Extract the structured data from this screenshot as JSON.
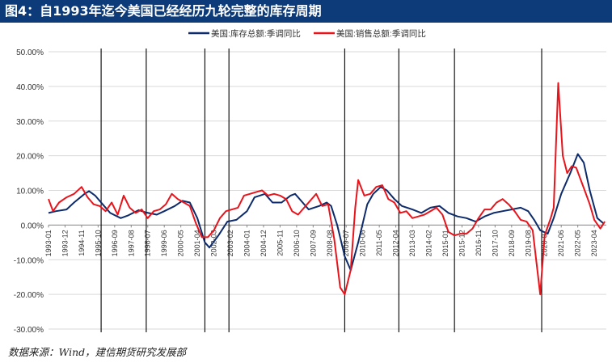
{
  "header": {
    "title": "图4：自1993年迄今美国已经经历九轮完整的库存周期"
  },
  "footer": {
    "source": "数据来源：Wind，建信期货研究发展部"
  },
  "colors": {
    "title_bg": "#0d3b7a",
    "inventory": "#0d2a6b",
    "sales": "#e8141c",
    "divider": "#000000"
  },
  "chart_data": {
    "type": "line",
    "ylim": [
      -30,
      50
    ],
    "y_ticks": [
      -30,
      -20,
      -10,
      0,
      10,
      20,
      30,
      40,
      50
    ],
    "y_tick_labels": [
      "-30.00%",
      "-20.00%",
      "-10.00%",
      "0.00%",
      "10.00%",
      "20.00%",
      "30.00%",
      "40.00%",
      "50.00%"
    ],
    "x_tick_labels": [
      "1993-01",
      "1993-12",
      "1994-11",
      "1995-10",
      "1996-09",
      "1997-08",
      "1998-07",
      "1999-06",
      "2000-05",
      "2001-04",
      "2002-03",
      "2003-02",
      "2004-01",
      "2004-12",
      "2005-11",
      "2006-10",
      "2007-09",
      "2008-08",
      "2009-07",
      "2010-06",
      "2011-05",
      "2012-04",
      "2013-03",
      "2014-02",
      "2015-01",
      "2015-12",
      "2016-11",
      "2017-10",
      "2018-09",
      "2019-08",
      "2020-07",
      "2021-06",
      "2022-05",
      "2023-04"
    ],
    "cycle_dividers": [
      "1995-12",
      "1998-06",
      "2001-09",
      "2003-01",
      "2009-06",
      "2012-06",
      "2015-07",
      "2020-05"
    ],
    "series": [
      {
        "name": "美国:库存总额:季调同比",
        "points": [
          [
            "1993-01",
            3.5
          ],
          [
            "1993-06",
            4.0
          ],
          [
            "1994-01",
            4.5
          ],
          [
            "1994-06",
            6.5
          ],
          [
            "1995-01",
            9.0
          ],
          [
            "1995-04",
            9.8
          ],
          [
            "1995-08",
            8.5
          ],
          [
            "1995-12",
            6.5
          ],
          [
            "1996-06",
            3.5
          ],
          [
            "1997-01",
            2.0
          ],
          [
            "1997-06",
            2.8
          ],
          [
            "1998-01",
            4.3
          ],
          [
            "1998-06",
            3.6
          ],
          [
            "1999-01",
            3.0
          ],
          [
            "1999-06",
            4.0
          ],
          [
            "2000-01",
            5.5
          ],
          [
            "2000-06",
            7.0
          ],
          [
            "2000-11",
            6.5
          ],
          [
            "2001-04",
            2.0
          ],
          [
            "2001-09",
            -5.0
          ],
          [
            "2001-12",
            -6.5
          ],
          [
            "2002-06",
            -3.0
          ],
          [
            "2002-12",
            1.0
          ],
          [
            "2003-06",
            1.5
          ],
          [
            "2004-01",
            4.0
          ],
          [
            "2004-06",
            8.0
          ],
          [
            "2005-01",
            9.0
          ],
          [
            "2005-06",
            6.5
          ],
          [
            "2005-12",
            6.5
          ],
          [
            "2006-06",
            8.5
          ],
          [
            "2006-09",
            9.0
          ],
          [
            "2007-01",
            7.0
          ],
          [
            "2007-06",
            4.5
          ],
          [
            "2008-01",
            5.5
          ],
          [
            "2008-06",
            6.5
          ],
          [
            "2008-09",
            5.5
          ],
          [
            "2009-01",
            0.0
          ],
          [
            "2009-06",
            -9.0
          ],
          [
            "2009-10",
            -13.0
          ],
          [
            "2010-03",
            -5.0
          ],
          [
            "2010-09",
            6.0
          ],
          [
            "2011-01",
            9.0
          ],
          [
            "2011-06",
            11.0
          ],
          [
            "2011-10",
            10.0
          ],
          [
            "2012-03",
            7.5
          ],
          [
            "2012-08",
            5.5
          ],
          [
            "2013-03",
            4.5
          ],
          [
            "2013-09",
            3.5
          ],
          [
            "2014-03",
            5.0
          ],
          [
            "2014-09",
            5.5
          ],
          [
            "2015-03",
            3.5
          ],
          [
            "2015-09",
            2.5
          ],
          [
            "2016-03",
            2.0
          ],
          [
            "2016-09",
            1.0
          ],
          [
            "2017-03",
            2.5
          ],
          [
            "2017-09",
            3.5
          ],
          [
            "2018-03",
            4.0
          ],
          [
            "2018-09",
            4.5
          ],
          [
            "2019-03",
            5.0
          ],
          [
            "2019-08",
            4.0
          ],
          [
            "2019-12",
            1.5
          ],
          [
            "2020-04",
            -1.5
          ],
          [
            "2020-09",
            -2.5
          ],
          [
            "2021-01",
            2.0
          ],
          [
            "2021-06",
            9.0
          ],
          [
            "2021-12",
            15.0
          ],
          [
            "2022-05",
            20.5
          ],
          [
            "2022-09",
            18.0
          ],
          [
            "2023-01",
            10.0
          ],
          [
            "2023-06",
            2.0
          ],
          [
            "2023-10",
            0.5
          ]
        ]
      },
      {
        "name": "美国:销售总额:季调同比",
        "points": [
          [
            "1993-01",
            7.5
          ],
          [
            "1993-04",
            4.0
          ],
          [
            "1993-08",
            6.5
          ],
          [
            "1994-01",
            8.0
          ],
          [
            "1994-06",
            9.0
          ],
          [
            "1994-11",
            11.0
          ],
          [
            "1995-03",
            8.0
          ],
          [
            "1995-07",
            6.0
          ],
          [
            "1995-11",
            5.5
          ],
          [
            "1996-03",
            4.0
          ],
          [
            "1996-07",
            6.5
          ],
          [
            "1996-11",
            3.0
          ],
          [
            "1997-03",
            8.5
          ],
          [
            "1997-07",
            5.0
          ],
          [
            "1997-11",
            3.5
          ],
          [
            "1998-03",
            4.5
          ],
          [
            "1998-07",
            2.0
          ],
          [
            "1998-11",
            4.0
          ],
          [
            "1999-03",
            4.5
          ],
          [
            "1999-07",
            6.0
          ],
          [
            "1999-11",
            9.0
          ],
          [
            "2000-03",
            7.5
          ],
          [
            "2000-07",
            6.5
          ],
          [
            "2000-11",
            5.5
          ],
          [
            "2001-03",
            0.5
          ],
          [
            "2001-07",
            -3.5
          ],
          [
            "2001-11",
            -3.5
          ],
          [
            "2002-03",
            -1.5
          ],
          [
            "2002-07",
            2.0
          ],
          [
            "2002-11",
            4.0
          ],
          [
            "2003-03",
            4.5
          ],
          [
            "2003-07",
            5.0
          ],
          [
            "2003-11",
            8.5
          ],
          [
            "2004-03",
            9.0
          ],
          [
            "2004-07",
            9.5
          ],
          [
            "2004-11",
            10.0
          ],
          [
            "2005-03",
            8.5
          ],
          [
            "2005-07",
            9.0
          ],
          [
            "2005-11",
            8.5
          ],
          [
            "2006-03",
            7.5
          ],
          [
            "2006-07",
            4.0
          ],
          [
            "2006-11",
            3.0
          ],
          [
            "2007-03",
            5.0
          ],
          [
            "2007-07",
            7.0
          ],
          [
            "2007-11",
            9.0
          ],
          [
            "2008-03",
            5.5
          ],
          [
            "2008-07",
            6.0
          ],
          [
            "2008-11",
            -4.0
          ],
          [
            "2009-03",
            -18.0
          ],
          [
            "2009-06",
            -20.0
          ],
          [
            "2009-10",
            -13.0
          ],
          [
            "2010-01",
            5.0
          ],
          [
            "2010-03",
            13.0
          ],
          [
            "2010-07",
            8.5
          ],
          [
            "2010-11",
            9.0
          ],
          [
            "2011-03",
            11.0
          ],
          [
            "2011-07",
            11.5
          ],
          [
            "2011-11",
            7.5
          ],
          [
            "2012-03",
            6.5
          ],
          [
            "2012-07",
            3.5
          ],
          [
            "2012-11",
            4.0
          ],
          [
            "2013-03",
            2.0
          ],
          [
            "2013-07",
            2.5
          ],
          [
            "2013-11",
            3.0
          ],
          [
            "2014-03",
            4.0
          ],
          [
            "2014-07",
            5.0
          ],
          [
            "2014-11",
            3.0
          ],
          [
            "2015-03",
            -2.0
          ],
          [
            "2015-07",
            -3.0
          ],
          [
            "2015-11",
            -2.5
          ],
          [
            "2016-03",
            -2.5
          ],
          [
            "2016-07",
            -1.0
          ],
          [
            "2016-11",
            2.0
          ],
          [
            "2017-03",
            4.5
          ],
          [
            "2017-07",
            4.5
          ],
          [
            "2017-11",
            6.5
          ],
          [
            "2018-03",
            7.5
          ],
          [
            "2018-07",
            6.0
          ],
          [
            "2018-11",
            4.0
          ],
          [
            "2019-03",
            1.5
          ],
          [
            "2019-07",
            1.0
          ],
          [
            "2019-11",
            -1.5
          ],
          [
            "2020-04",
            -20.0
          ],
          [
            "2020-07",
            -3.0
          ],
          [
            "2020-11",
            2.0
          ],
          [
            "2021-01",
            5.0
          ],
          [
            "2021-04",
            41.0
          ],
          [
            "2021-07",
            20.0
          ],
          [
            "2021-10",
            15.0
          ],
          [
            "2022-01",
            17.0
          ],
          [
            "2022-04",
            16.5
          ],
          [
            "2022-07",
            13.0
          ],
          [
            "2022-10",
            9.5
          ],
          [
            "2023-01",
            6.0
          ],
          [
            "2023-04",
            1.5
          ],
          [
            "2023-08",
            -1.0
          ],
          [
            "2023-11",
            1.0
          ]
        ]
      }
    ]
  }
}
